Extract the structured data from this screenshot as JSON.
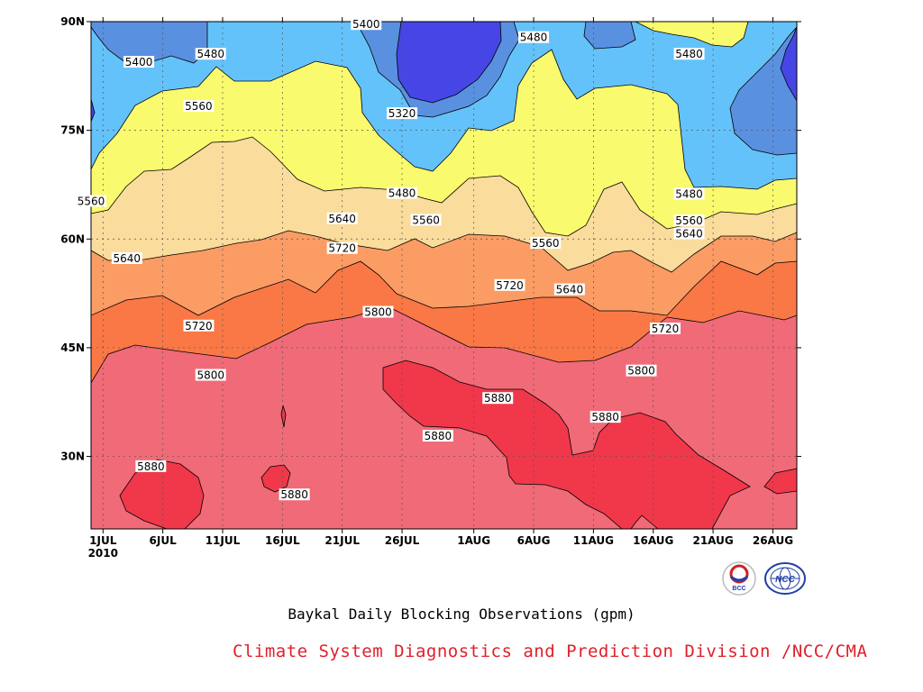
{
  "chart_data": {
    "type": "heatmap",
    "title": "Baykal Daily Blocking Observations (gpm)",
    "xlabel": "",
    "ylabel": "",
    "x_ticks": [
      "1JUL\n2010",
      "6JUL",
      "11JUL",
      "16JUL",
      "21JUL",
      "26JUL",
      "1AUG",
      "6AUG",
      "11AUG",
      "16AUG",
      "21AUG",
      "26AUG"
    ],
    "y_ticks": [
      "90N",
      "75N",
      "60N",
      "45N",
      "30N"
    ],
    "xlim": [
      "2010-06-30",
      "2010-08-28"
    ],
    "ylim": [
      20,
      90
    ],
    "contour_levels": [
      5320,
      5400,
      5480,
      5560,
      5640,
      5720,
      5800,
      5880
    ],
    "contour_labels": [
      {
        "text": "5400",
        "x": "2010-07-23",
        "y": 89.6
      },
      {
        "text": "5480",
        "x": "2010-08-06",
        "y": 87.8
      },
      {
        "text": "5400",
        "x": "2010-07-04",
        "y": 84.4
      },
      {
        "text": "5480",
        "x": "2010-07-10",
        "y": 85.5
      },
      {
        "text": "5480",
        "x": "2010-08-19",
        "y": 85.5
      },
      {
        "text": "5320",
        "x": "2010-07-26",
        "y": 77.3
      },
      {
        "text": "5560",
        "x": "2010-07-09",
        "y": 78.3
      },
      {
        "text": "5480",
        "x": "2010-07-26",
        "y": 66.3
      },
      {
        "text": "5480",
        "x": "2010-08-19",
        "y": 66.2
      },
      {
        "text": "5560",
        "x": "2010-06-30",
        "y": 65.2
      },
      {
        "text": "5560",
        "x": "2010-07-28",
        "y": 62.6
      },
      {
        "text": "5560",
        "x": "2010-08-19",
        "y": 62.5
      },
      {
        "text": "5640",
        "x": "2010-07-21",
        "y": 62.8
      },
      {
        "text": "5560",
        "x": "2010-08-07",
        "y": 59.4
      },
      {
        "text": "5640",
        "x": "2010-08-19",
        "y": 60.7
      },
      {
        "text": "5720",
        "x": "2010-07-21",
        "y": 58.7
      },
      {
        "text": "5640",
        "x": "2010-07-03",
        "y": 57.3
      },
      {
        "text": "5640",
        "x": "2010-08-09",
        "y": 53.0
      },
      {
        "text": "5720",
        "x": "2010-08-04",
        "y": 53.6
      },
      {
        "text": "5800",
        "x": "2010-07-24",
        "y": 49.9
      },
      {
        "text": "5720",
        "x": "2010-07-09",
        "y": 48.0
      },
      {
        "text": "5720",
        "x": "2010-08-17",
        "y": 47.6
      },
      {
        "text": "5800",
        "x": "2010-07-10",
        "y": 41.2
      },
      {
        "text": "5800",
        "x": "2010-08-15",
        "y": 41.8
      },
      {
        "text": "5880",
        "x": "2010-08-03",
        "y": 38.0
      },
      {
        "text": "5880",
        "x": "2010-08-12",
        "y": 35.4
      },
      {
        "text": "5880",
        "x": "2010-07-29",
        "y": 32.8
      },
      {
        "text": "5880",
        "x": "2010-07-05",
        "y": 28.6
      },
      {
        "text": "5880",
        "x": "2010-07-17",
        "y": 24.7
      }
    ],
    "colors": {
      "lt5320": "#4646e6",
      "5320-5400": "#5a90e0",
      "5400-5480": "#64c2fa",
      "5480-5560": "#fafa6e",
      "5560-5640": "#fadc9c",
      "5640-5720": "#fa9c64",
      "5720-5800": "#fa7846",
      "5800-5880": "#f06a78",
      "gt5880": "#f0384a"
    },
    "grid": true,
    "legend": "none"
  },
  "footer": {
    "text": "Climate System Diagnostics and Prediction Division /NCC/CMA",
    "color": "#e0202a"
  },
  "logos": [
    {
      "name": "bcc-logo-icon",
      "text": "BCC"
    },
    {
      "name": "ncc-logo-icon",
      "text": "NCC"
    }
  ]
}
